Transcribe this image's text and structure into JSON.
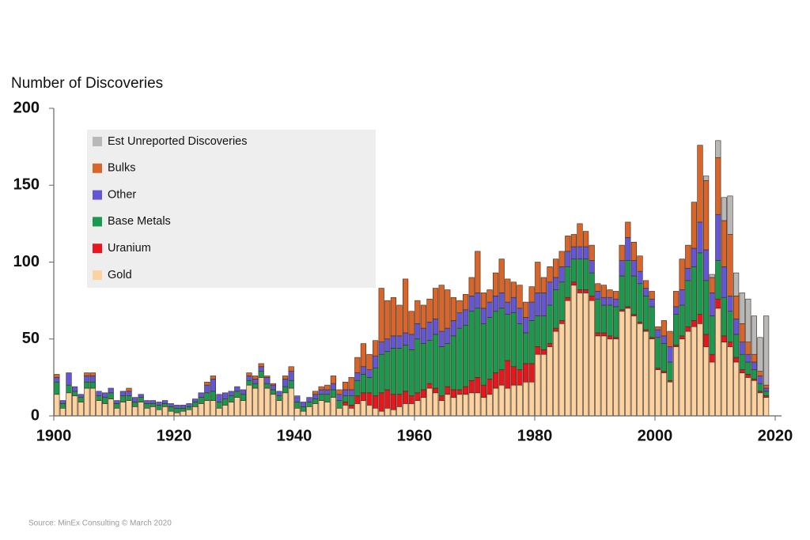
{
  "chart_data": {
    "type": "stacked_bar",
    "y_label": "Number of Discoveries",
    "source": "Source: MinEx Consulting © March 2020",
    "xlim": [
      1900,
      2020
    ],
    "xticks": [
      1900,
      1920,
      1940,
      1960,
      1980,
      2000,
      2020
    ],
    "ylim": [
      0,
      200
    ],
    "yticks": [
      0,
      50,
      100,
      150,
      200
    ],
    "x": [
      1900,
      1901,
      1902,
      1903,
      1904,
      1905,
      1906,
      1907,
      1908,
      1909,
      1910,
      1911,
      1912,
      1913,
      1914,
      1915,
      1916,
      1917,
      1918,
      1919,
      1920,
      1921,
      1922,
      1923,
      1924,
      1925,
      1926,
      1927,
      1928,
      1929,
      1930,
      1931,
      1932,
      1933,
      1934,
      1935,
      1936,
      1937,
      1938,
      1939,
      1940,
      1941,
      1942,
      1943,
      1944,
      1945,
      1946,
      1947,
      1948,
      1949,
      1950,
      1951,
      1952,
      1953,
      1954,
      1955,
      1956,
      1957,
      1958,
      1959,
      1960,
      1961,
      1962,
      1963,
      1964,
      1965,
      1966,
      1967,
      1968,
      1969,
      1970,
      1971,
      1972,
      1973,
      1974,
      1975,
      1976,
      1977,
      1978,
      1979,
      1980,
      1981,
      1982,
      1983,
      1984,
      1985,
      1986,
      1987,
      1988,
      1989,
      1990,
      1991,
      1992,
      1993,
      1994,
      1995,
      1996,
      1997,
      1998,
      1999,
      2000,
      2001,
      2002,
      2003,
      2004,
      2005,
      2006,
      2007,
      2008,
      2009,
      2010,
      2011,
      2012,
      2013,
      2014,
      2015,
      2016,
      2017,
      2018
    ],
    "series": [
      {
        "name": "Gold",
        "color": "#fcd3a0",
        "values": [
          14,
          5,
          15,
          13,
          9,
          18,
          18,
          10,
          8,
          11,
          5,
          9,
          10,
          6,
          9,
          5,
          6,
          4,
          6,
          3,
          2,
          3,
          4,
          6,
          8,
          10,
          10,
          5,
          7,
          9,
          12,
          10,
          20,
          18,
          25,
          18,
          14,
          10,
          15,
          18,
          5,
          3,
          6,
          8,
          10,
          9,
          12,
          5,
          7,
          5,
          8,
          10,
          7,
          5,
          3,
          5,
          4,
          6,
          8,
          8,
          10,
          12,
          18,
          15,
          10,
          14,
          12,
          14,
          14,
          15,
          15,
          12,
          14,
          18,
          20,
          18,
          20,
          20,
          22,
          22,
          40,
          40,
          45,
          55,
          60,
          75,
          85,
          80,
          80,
          75,
          52,
          52,
          50,
          50,
          68,
          70,
          65,
          60,
          55,
          50,
          30,
          28,
          22,
          45,
          50,
          55,
          58,
          60,
          45,
          35,
          70,
          48,
          45,
          35,
          28,
          25,
          23,
          15,
          12
        ]
      },
      {
        "name": "Uranium",
        "color": "#e8171e",
        "values": [
          0,
          0,
          0,
          0,
          0,
          0,
          0,
          0,
          0,
          0,
          0,
          0,
          0,
          0,
          0,
          0,
          0,
          0,
          0,
          0,
          0,
          0,
          0,
          0,
          0,
          0,
          0,
          0,
          0,
          0,
          0,
          0,
          0,
          0,
          0,
          0,
          0,
          0,
          0,
          0,
          0,
          0,
          0,
          0,
          0,
          0,
          0,
          0,
          2,
          2,
          5,
          5,
          8,
          8,
          12,
          12,
          10,
          8,
          8,
          5,
          5,
          5,
          3,
          3,
          3,
          5,
          5,
          3,
          5,
          8,
          10,
          8,
          10,
          10,
          10,
          18,
          12,
          10,
          12,
          12,
          5,
          3,
          2,
          2,
          2,
          2,
          2,
          2,
          2,
          3,
          2,
          2,
          2,
          1,
          1,
          1,
          1,
          1,
          1,
          1,
          1,
          1,
          1,
          1,
          2,
          3,
          4,
          6,
          8,
          5,
          6,
          4,
          3,
          3,
          2,
          2,
          1,
          1,
          1
        ]
      },
      {
        "name": "Base Metals",
        "color": "#1a9a4e",
        "values": [
          8,
          3,
          5,
          3,
          3,
          4,
          4,
          3,
          4,
          4,
          3,
          4,
          3,
          3,
          3,
          3,
          2,
          3,
          2,
          3,
          3,
          2,
          2,
          3,
          4,
          5,
          6,
          4,
          4,
          4,
          4,
          4,
          3,
          3,
          4,
          3,
          3,
          3,
          4,
          5,
          4,
          3,
          3,
          3,
          4,
          5,
          5,
          5,
          4,
          6,
          10,
          12,
          10,
          18,
          25,
          25,
          30,
          30,
          30,
          30,
          35,
          30,
          28,
          35,
          32,
          28,
          35,
          40,
          40,
          45,
          45,
          40,
          40,
          40,
          40,
          30,
          35,
          30,
          20,
          28,
          20,
          22,
          25,
          25,
          25,
          20,
          15,
          20,
          20,
          15,
          22,
          18,
          20,
          20,
          22,
          30,
          25,
          25,
          22,
          20,
          20,
          18,
          12,
          20,
          20,
          30,
          35,
          40,
          35,
          25,
          25,
          25,
          20,
          15,
          10,
          8,
          6,
          5,
          3
        ]
      },
      {
        "name": "Other",
        "color": "#6457d6",
        "values": [
          3,
          2,
          8,
          3,
          2,
          4,
          4,
          3,
          3,
          3,
          2,
          3,
          3,
          3,
          2,
          2,
          2,
          2,
          2,
          2,
          2,
          2,
          2,
          2,
          3,
          5,
          8,
          5,
          4,
          3,
          3,
          3,
          3,
          3,
          3,
          4,
          3,
          3,
          5,
          6,
          4,
          3,
          3,
          3,
          3,
          3,
          4,
          4,
          4,
          4,
          5,
          5,
          5,
          8,
          8,
          8,
          8,
          8,
          8,
          10,
          10,
          10,
          12,
          10,
          10,
          10,
          10,
          10,
          10,
          10,
          10,
          10,
          10,
          10,
          10,
          8,
          10,
          10,
          10,
          12,
          15,
          15,
          15,
          8,
          10,
          10,
          8,
          8,
          8,
          8,
          5,
          5,
          5,
          5,
          10,
          15,
          10,
          8,
          5,
          5,
          5,
          5,
          10,
          5,
          10,
          8,
          12,
          20,
          20,
          15,
          30,
          20,
          10,
          10,
          8,
          5,
          5,
          5,
          2
        ]
      },
      {
        "name": "Bulks",
        "color": "#d9652a",
        "values": [
          2,
          0,
          0,
          0,
          0,
          2,
          2,
          0,
          0,
          0,
          0,
          0,
          2,
          0,
          0,
          0,
          0,
          0,
          0,
          0,
          0,
          0,
          0,
          0,
          0,
          2,
          2,
          0,
          0,
          0,
          0,
          0,
          2,
          2,
          2,
          1,
          1,
          0,
          2,
          3,
          0,
          0,
          0,
          2,
          2,
          3,
          5,
          3,
          5,
          8,
          10,
          15,
          10,
          10,
          35,
          25,
          25,
          20,
          35,
          15,
          15,
          15,
          15,
          20,
          30,
          25,
          15,
          8,
          10,
          12,
          27,
          10,
          8,
          15,
          22,
          15,
          10,
          15,
          10,
          10,
          20,
          10,
          10,
          12,
          10,
          10,
          8,
          15,
          10,
          10,
          5,
          8,
          5,
          5,
          10,
          10,
          12,
          10,
          5,
          5,
          2,
          10,
          10,
          10,
          20,
          15,
          30,
          50,
          45,
          10,
          37,
          30,
          40,
          15,
          12,
          8,
          5,
          3,
          2
        ]
      },
      {
        "name": "Est Unreported Discoveries",
        "color": "#b8b8b8",
        "values": [
          0,
          0,
          0,
          0,
          0,
          0,
          0,
          0,
          0,
          0,
          0,
          0,
          0,
          0,
          0,
          0,
          0,
          0,
          0,
          0,
          0,
          0,
          0,
          0,
          0,
          0,
          0,
          0,
          0,
          0,
          0,
          0,
          0,
          0,
          0,
          0,
          0,
          0,
          0,
          0,
          0,
          0,
          0,
          0,
          0,
          0,
          0,
          0,
          0,
          0,
          0,
          0,
          0,
          0,
          0,
          0,
          0,
          0,
          0,
          0,
          0,
          0,
          0,
          0,
          0,
          0,
          0,
          0,
          0,
          0,
          0,
          0,
          0,
          0,
          0,
          0,
          0,
          0,
          0,
          0,
          0,
          0,
          0,
          0,
          0,
          0,
          0,
          0,
          0,
          0,
          0,
          0,
          0,
          0,
          0,
          0,
          0,
          0,
          0,
          0,
          0,
          0,
          0,
          0,
          0,
          0,
          0,
          0,
          3,
          2,
          11,
          15,
          25,
          15,
          20,
          28,
          25,
          22,
          45
        ]
      }
    ]
  }
}
